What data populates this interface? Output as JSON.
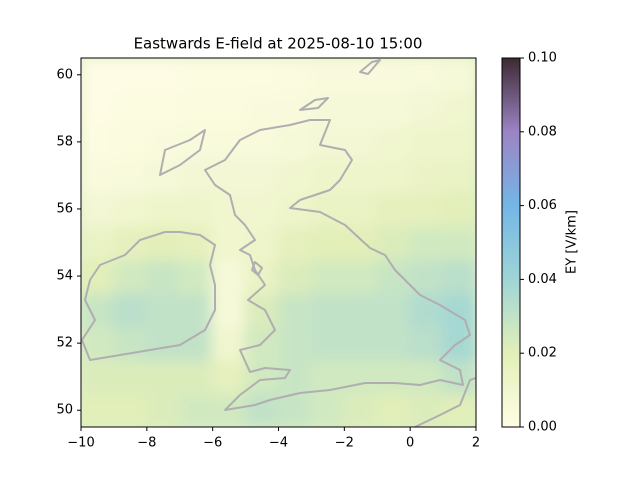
{
  "chart_data": {
    "type": "heatmap",
    "title": "Eastwards E-field at 2025-08-10 15:00",
    "x": [
      -9.5,
      -8.5,
      -7.5,
      -6.5,
      -5.5,
      -4.5,
      -3.5,
      -2.5,
      -1.5,
      -0.5,
      0.5,
      1.5
    ],
    "y": [
      50,
      51,
      52,
      53,
      54,
      55,
      56,
      57,
      58,
      59,
      60
    ],
    "z": [
      [
        0.02,
        0.02,
        0.022,
        0.025,
        0.025,
        0.03,
        0.028,
        0.025,
        0.022,
        0.02,
        0.022,
        0.02
      ],
      [
        0.022,
        0.022,
        0.022,
        0.022,
        0.018,
        0.025,
        0.028,
        0.025,
        0.025,
        0.025,
        0.025,
        0.03
      ],
      [
        0.025,
        0.028,
        0.03,
        0.03,
        0.01,
        0.025,
        0.028,
        0.03,
        0.03,
        0.03,
        0.032,
        0.038
      ],
      [
        0.028,
        0.032,
        0.03,
        0.03,
        0.006,
        0.022,
        0.028,
        0.03,
        0.03,
        0.03,
        0.035,
        0.038
      ],
      [
        0.02,
        0.025,
        0.028,
        0.025,
        0.006,
        0.015,
        0.022,
        0.025,
        0.025,
        0.028,
        0.03,
        0.032
      ],
      [
        0.015,
        0.018,
        0.02,
        0.018,
        0.01,
        0.012,
        0.018,
        0.02,
        0.02,
        0.022,
        0.025,
        0.025
      ],
      [
        0.008,
        0.01,
        0.012,
        0.012,
        0.01,
        0.01,
        0.012,
        0.015,
        0.015,
        0.018,
        0.018,
        0.02
      ],
      [
        0.004,
        0.005,
        0.006,
        0.008,
        0.008,
        0.008,
        0.01,
        0.012,
        0.012,
        0.012,
        0.014,
        0.015
      ],
      [
        0.002,
        0.003,
        0.004,
        0.005,
        0.005,
        0.005,
        0.006,
        0.008,
        0.008,
        0.01,
        0.012,
        0.012
      ],
      [
        0.001,
        0.002,
        0.002,
        0.003,
        0.003,
        0.004,
        0.004,
        0.006,
        0.006,
        0.006,
        0.008,
        0.01
      ],
      [
        0.001,
        0.001,
        0.001,
        0.002,
        0.002,
        0.002,
        0.003,
        0.004,
        0.004,
        0.004,
        0.005,
        0.006
      ]
    ],
    "xlim": [
      -10,
      2
    ],
    "ylim": [
      49.5,
      60.5
    ],
    "xticks": [
      -10,
      -8,
      -6,
      -4,
      -2,
      0,
      2
    ],
    "yticks": [
      50,
      52,
      54,
      56,
      58,
      60
    ],
    "colorbar_label": "EY [V/km]",
    "clim": [
      0,
      0.1
    ],
    "colorbar_ticks": [
      {
        "value": 0,
        "label": "0.00"
      },
      {
        "value": 0.02,
        "label": "0.02"
      },
      {
        "value": 0.04,
        "label": "0.04"
      },
      {
        "value": 0.06,
        "label": "0.06"
      },
      {
        "value": 0.08,
        "label": "0.08"
      },
      {
        "value": 0.1,
        "label": "0.10"
      }
    ],
    "colormap": [
      "#fffde6",
      "#e2efb8",
      "#9fd5d6",
      "#74b6e6",
      "#9c84c4",
      "#3c2a33"
    ]
  }
}
